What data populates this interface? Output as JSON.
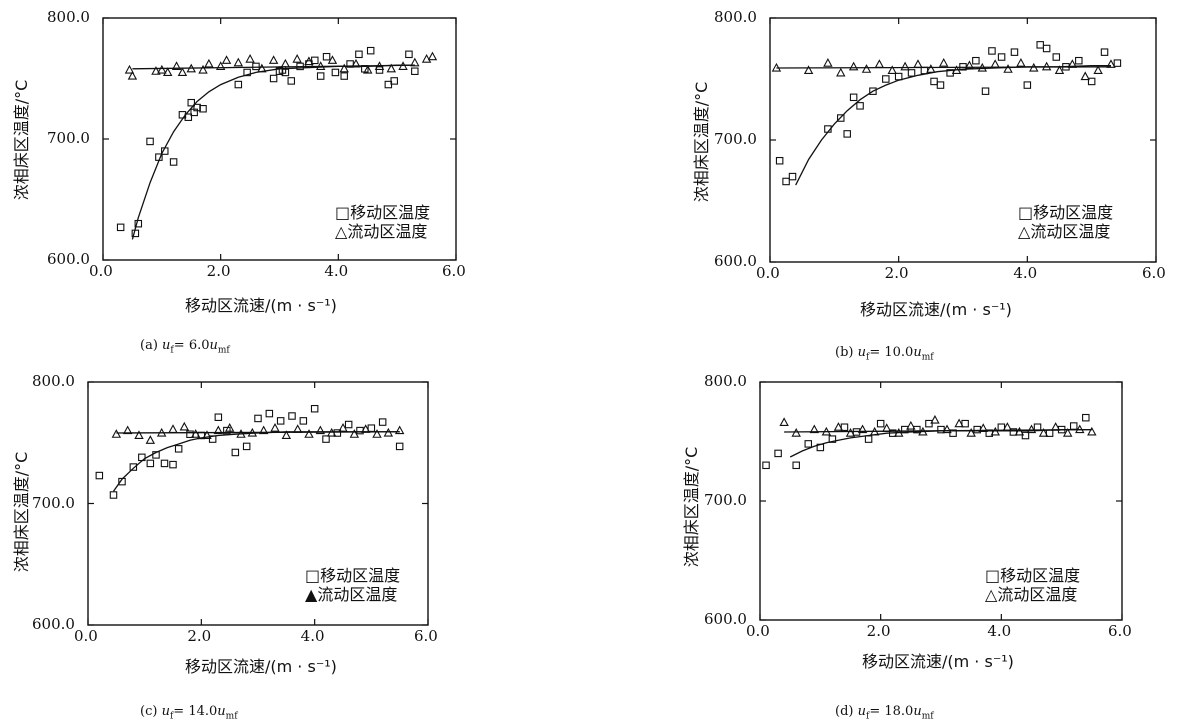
{
  "chart_data": [
    {
      "type": "scatter",
      "id": "a",
      "caption": {
        "prefix": "(a)",
        "lhs": "u",
        "lhs_sub": "f",
        "eq": "=",
        "value": "6.0",
        "rhs": "u",
        "rhs_sub": "mf"
      },
      "ylabel": "浓相床区温度/°C",
      "xlabel": "移动区流速/(m · s⁻¹)",
      "xlim": [
        0,
        6
      ],
      "ylim": [
        600,
        800
      ],
      "xticks": [
        "0.0",
        "2.0",
        "4.0",
        "6.0"
      ],
      "yticks": [
        "600.0",
        "700.0",
        "800.0"
      ],
      "legend": [
        "移动区温度",
        "流动区温度"
      ],
      "series": [
        {
          "name": "移动区温度",
          "marker": "square",
          "x": [
            0.3,
            0.55,
            0.6,
            0.8,
            0.95,
            1.05,
            1.2,
            1.35,
            1.45,
            1.5,
            1.55,
            1.6,
            1.7,
            2.3,
            2.45,
            2.6,
            2.9,
            3.0,
            3.05,
            3.1,
            3.2,
            3.35,
            3.5,
            3.6,
            3.7,
            3.8,
            3.95,
            4.1,
            4.2,
            4.35,
            4.45,
            4.55,
            4.7,
            4.85,
            4.95,
            5.2,
            5.3
          ],
          "y": [
            627,
            622,
            630,
            698,
            685,
            690,
            681,
            720,
            718,
            730,
            722,
            726,
            725,
            745,
            755,
            760,
            750,
            756,
            757,
            755,
            748,
            760,
            762,
            765,
            752,
            768,
            755,
            752,
            762,
            770,
            758,
            773,
            757,
            745,
            748,
            770,
            756
          ]
        },
        {
          "name": "流动区温度",
          "marker": "triangle",
          "x": [
            0.45,
            0.5,
            0.9,
            1.0,
            1.1,
            1.25,
            1.35,
            1.5,
            1.7,
            1.8,
            2.0,
            2.1,
            2.3,
            2.5,
            2.7,
            2.9,
            3.1,
            3.3,
            3.5,
            3.7,
            3.9,
            4.1,
            4.3,
            4.5,
            4.7,
            4.9,
            5.1,
            5.3,
            5.5,
            5.6
          ],
          "y": [
            757,
            752,
            756,
            757,
            755,
            760,
            755,
            758,
            757,
            762,
            760,
            765,
            763,
            766,
            758,
            765,
            762,
            766,
            764,
            760,
            765,
            758,
            762,
            757,
            760,
            758,
            760,
            763,
            766,
            768
          ]
        }
      ],
      "fit_curves": [
        {
          "x": [
            0.5,
            0.6,
            0.8,
            1.0,
            1.2,
            1.4,
            1.6,
            1.8,
            2.0,
            2.3,
            2.6,
            3.0,
            3.5,
            4.0,
            4.5,
            5.0,
            5.3
          ],
          "y": [
            617,
            635,
            664,
            688,
            706,
            720,
            731,
            739,
            745,
            751,
            755,
            758,
            759,
            760,
            760,
            761,
            761
          ]
        },
        {
          "x": [
            0.5,
            5.3
          ],
          "y": [
            758,
            761
          ]
        }
      ]
    },
    {
      "type": "scatter",
      "id": "b",
      "caption": {
        "prefix": "(b)",
        "lhs": "u",
        "lhs_sub": "f",
        "eq": "=",
        "value": "10.0",
        "rhs": "u",
        "rhs_sub": "mf"
      },
      "ylabel": "浓相床区温度/°C",
      "xlabel": "移动区流速/(m · s⁻¹)",
      "xlim": [
        0,
        6
      ],
      "ylim": [
        600,
        800
      ],
      "xticks": [
        "0.0",
        "2.0",
        "4.0",
        "6.0"
      ],
      "yticks": [
        "600.0",
        "700.0",
        "800.0"
      ],
      "legend": [
        "移动区温度",
        "流动区温度"
      ],
      "series": [
        {
          "name": "移动区温度",
          "marker": "square",
          "x": [
            0.15,
            0.25,
            0.35,
            0.9,
            1.1,
            1.2,
            1.3,
            1.4,
            1.6,
            1.8,
            2.0,
            2.2,
            2.4,
            2.55,
            2.65,
            2.8,
            3.0,
            3.2,
            3.35,
            3.45,
            3.6,
            3.8,
            4.0,
            4.2,
            4.3,
            4.45,
            4.6,
            4.8,
            5.0,
            5.2,
            5.4
          ],
          "y": [
            683,
            666,
            670,
            709,
            718,
            705,
            735,
            728,
            740,
            750,
            752,
            755,
            757,
            748,
            745,
            755,
            760,
            765,
            740,
            773,
            768,
            772,
            745,
            778,
            775,
            768,
            760,
            765,
            748,
            772,
            763
          ]
        },
        {
          "name": "流动区温度",
          "marker": "triangle",
          "x": [
            0.1,
            0.6,
            0.9,
            1.1,
            1.3,
            1.5,
            1.7,
            1.9,
            2.1,
            2.3,
            2.5,
            2.7,
            2.9,
            3.1,
            3.3,
            3.5,
            3.7,
            3.9,
            4.1,
            4.3,
            4.5,
            4.7,
            4.9,
            5.1,
            5.3
          ],
          "y": [
            759,
            757,
            763,
            755,
            760,
            758,
            762,
            757,
            760,
            762,
            758,
            763,
            757,
            761,
            759,
            762,
            758,
            763,
            759,
            760,
            757,
            762,
            752,
            757,
            762
          ]
        }
      ],
      "fit_curves": [
        {
          "x": [
            0.4,
            0.6,
            0.8,
            1.0,
            1.2,
            1.4,
            1.6,
            1.8,
            2.0,
            2.3,
            2.6,
            3.0,
            3.5,
            4.0,
            4.5,
            5.0,
            5.3
          ],
          "y": [
            663,
            684,
            700,
            713,
            724,
            733,
            740,
            745,
            749,
            753,
            756,
            758,
            759,
            760,
            760,
            761,
            761
          ]
        },
        {
          "x": [
            0.1,
            5.3
          ],
          "y": [
            759,
            760
          ]
        }
      ]
    },
    {
      "type": "scatter",
      "id": "c",
      "caption": {
        "prefix": "(c)",
        "lhs": "u",
        "lhs_sub": "f",
        "eq": "=",
        "value": "14.0",
        "rhs": "u",
        "rhs_sub": "mf"
      },
      "ylabel": "浓相床区温度/°C",
      "xlabel": "移动区流速/(m · s⁻¹)",
      "xlim": [
        0,
        6
      ],
      "ylim": [
        600,
        800
      ],
      "xticks": [
        "0.0",
        "2.0",
        "4.0",
        "6.0"
      ],
      "yticks": [
        "600.0",
        "700.0",
        "800.0"
      ],
      "legend": [
        "移动区温度",
        "流动区温度"
      ],
      "series": [
        {
          "name": "移动区温度",
          "marker": "square",
          "x": [
            0.2,
            0.45,
            0.6,
            0.8,
            0.95,
            1.1,
            1.2,
            1.35,
            1.5,
            1.6,
            1.8,
            2.0,
            2.2,
            2.3,
            2.45,
            2.6,
            2.8,
            3.0,
            3.2,
            3.4,
            3.6,
            3.8,
            4.0,
            4.2,
            4.4,
            4.6,
            4.8,
            5.0,
            5.2,
            5.5
          ],
          "y": [
            723,
            707,
            718,
            730,
            738,
            733,
            740,
            733,
            732,
            745,
            757,
            756,
            753,
            771,
            760,
            742,
            747,
            770,
            774,
            768,
            772,
            768,
            778,
            753,
            758,
            765,
            760,
            762,
            767,
            747
          ]
        },
        {
          "name": "流动区温度",
          "marker": "triangle",
          "x": [
            0.5,
            0.7,
            0.9,
            1.1,
            1.3,
            1.5,
            1.7,
            1.9,
            2.1,
            2.3,
            2.5,
            2.7,
            2.9,
            3.1,
            3.3,
            3.5,
            3.7,
            3.9,
            4.1,
            4.3,
            4.5,
            4.7,
            4.9,
            5.1,
            5.3,
            5.5
          ],
          "y": [
            757,
            760,
            756,
            752,
            758,
            761,
            763,
            757,
            756,
            760,
            762,
            757,
            758,
            760,
            762,
            756,
            761,
            757,
            760,
            758,
            762,
            757,
            761,
            757,
            758,
            760
          ]
        }
      ],
      "fit_curves": [
        {
          "x": [
            0.45,
            0.6,
            0.8,
            1.0,
            1.2,
            1.4,
            1.6,
            1.8,
            2.0,
            2.3,
            2.6,
            3.0,
            3.5,
            4.0,
            4.5,
            5.0,
            5.5
          ],
          "y": [
            710,
            720,
            729,
            737,
            742,
            746,
            749,
            752,
            754,
            756,
            757,
            758,
            759,
            759,
            759,
            759,
            759
          ]
        },
        {
          "x": [
            0.5,
            5.5
          ],
          "y": [
            758,
            759
          ]
        }
      ]
    },
    {
      "type": "scatter",
      "id": "d",
      "caption": {
        "prefix": "(d)",
        "lhs": "u",
        "lhs_sub": "f",
        "eq": "=",
        "value": "18.0",
        "rhs": "u",
        "rhs_sub": "mf"
      },
      "ylabel": "浓相床区温度/°C",
      "xlabel": "移动区流速/(m · s⁻¹)",
      "xlim": [
        0,
        6
      ],
      "ylim": [
        600,
        800
      ],
      "xticks": [
        "0.0",
        "2.0",
        "4.0",
        "6.0"
      ],
      "yticks": [
        "600.0",
        "700.0",
        "800.0"
      ],
      "legend": [
        "移动区温度",
        "流动区温度"
      ],
      "series": [
        {
          "name": "移动区温度",
          "marker": "square",
          "x": [
            0.1,
            0.3,
            0.6,
            0.8,
            1.0,
            1.2,
            1.4,
            1.6,
            1.8,
            2.0,
            2.2,
            2.4,
            2.6,
            2.8,
            3.0,
            3.2,
            3.4,
            3.6,
            3.8,
            4.0,
            4.2,
            4.4,
            4.6,
            4.8,
            5.0,
            5.2,
            5.4
          ],
          "y": [
            730,
            740,
            730,
            748,
            745,
            752,
            762,
            758,
            752,
            765,
            757,
            760,
            760,
            765,
            760,
            757,
            765,
            760,
            757,
            762,
            758,
            755,
            762,
            757,
            760,
            763,
            770
          ]
        },
        {
          "name": "流动区温度",
          "marker": "triangle",
          "x": [
            0.4,
            0.6,
            0.9,
            1.1,
            1.3,
            1.5,
            1.7,
            1.9,
            2.1,
            2.3,
            2.5,
            2.7,
            2.9,
            3.1,
            3.3,
            3.5,
            3.7,
            3.9,
            4.1,
            4.3,
            4.5,
            4.7,
            4.9,
            5.1,
            5.3,
            5.5
          ],
          "y": [
            766,
            757,
            760,
            758,
            762,
            757,
            760,
            758,
            761,
            757,
            763,
            758,
            768,
            760,
            765,
            757,
            761,
            758,
            762,
            758,
            760,
            757,
            762,
            757,
            760,
            758
          ]
        }
      ],
      "fit_curves": [
        {
          "x": [
            0.5,
            0.7,
            0.9,
            1.1,
            1.3,
            1.5,
            1.8,
            2.1,
            2.5,
            3.0,
            3.5,
            4.0,
            4.5,
            5.0,
            5.5
          ],
          "y": [
            737,
            742,
            746,
            749,
            751,
            753,
            755,
            757,
            758,
            759,
            759,
            759,
            759,
            760,
            760
          ]
        },
        {
          "x": [
            0.4,
            5.5
          ],
          "y": [
            758,
            760
          ]
        }
      ]
    }
  ]
}
